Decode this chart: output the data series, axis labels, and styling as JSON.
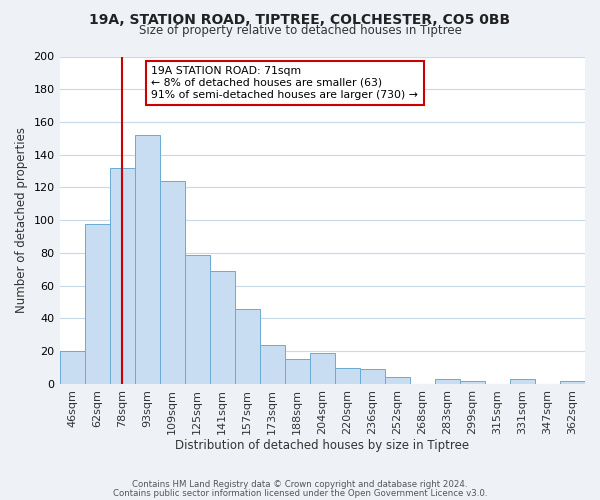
{
  "title1": "19A, STATION ROAD, TIPTREE, COLCHESTER, CO5 0BB",
  "title2": "Size of property relative to detached houses in Tiptree",
  "xlabel": "Distribution of detached houses by size in Tiptree",
  "ylabel": "Number of detached properties",
  "categories": [
    "46sqm",
    "62sqm",
    "78sqm",
    "93sqm",
    "109sqm",
    "125sqm",
    "141sqm",
    "157sqm",
    "173sqm",
    "188sqm",
    "204sqm",
    "220sqm",
    "236sqm",
    "252sqm",
    "268sqm",
    "283sqm",
    "299sqm",
    "315sqm",
    "331sqm",
    "347sqm",
    "362sqm"
  ],
  "values": [
    20,
    98,
    132,
    152,
    124,
    79,
    69,
    46,
    24,
    15,
    19,
    10,
    9,
    4,
    0,
    3,
    2,
    0,
    3,
    0,
    2
  ],
  "bar_color": "#c9ddf2",
  "bar_edge_color": "#6aaad4",
  "ylim": [
    0,
    200
  ],
  "yticks": [
    0,
    20,
    40,
    60,
    80,
    100,
    120,
    140,
    160,
    180,
    200
  ],
  "property_label": "19A STATION ROAD: 71sqm",
  "annotation_line1": "← 8% of detached houses are smaller (63)",
  "annotation_line2": "91% of semi-detached houses are larger (730) →",
  "vline_x_index": 2,
  "vline_color": "#cc0000",
  "annotation_box_color": "#ffffff",
  "annotation_box_edge": "#cc0000",
  "footer1": "Contains HM Land Registry data © Crown copyright and database right 2024.",
  "footer2": "Contains public sector information licensed under the Open Government Licence v3.0.",
  "background_color": "#eef2f7",
  "plot_bg_color": "#ffffff",
  "grid_color": "#c8d8e8"
}
